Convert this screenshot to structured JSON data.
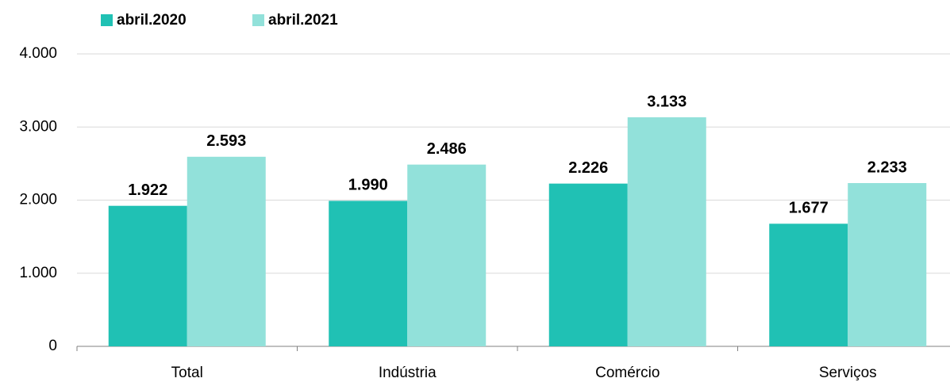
{
  "chart_data": {
    "type": "bar",
    "categories": [
      "Total",
      "Indústria",
      "Comércio",
      "Serviços"
    ],
    "series": [
      {
        "name": "abril.2020",
        "color": "#20c1b4",
        "values": [
          1922,
          1990,
          2226,
          1677
        ],
        "value_labels": [
          "1.922",
          "1.990",
          "2.226",
          "1.677"
        ]
      },
      {
        "name": "abril.2021",
        "color": "#92e1da",
        "values": [
          2593,
          2486,
          3133,
          2233
        ],
        "value_labels": [
          "2.593",
          "2.486",
          "3.133",
          "2.233"
        ]
      }
    ],
    "ylim": [
      0,
      4000
    ],
    "yticks": [
      0,
      {
        "value": 1000,
        "label": "1.000"
      },
      {
        "value": 2000,
        "label": "2.000"
      },
      {
        "value": 3000,
        "label": "3.000"
      },
      {
        "value": 4000,
        "label": "4.000"
      }
    ],
    "grid": true,
    "legend": "top"
  }
}
